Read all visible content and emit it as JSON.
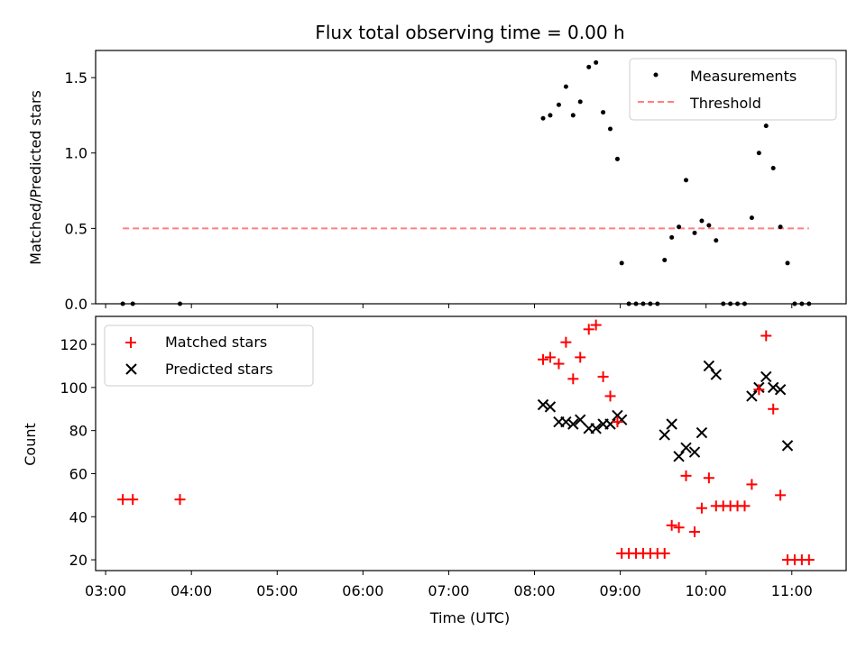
{
  "title": "Flux total observing time = 0.00 h",
  "colors": {
    "measurement": "#000000",
    "threshold": "#ff7f7f",
    "matched": "#ff0000",
    "predicted": "#000000"
  },
  "chart_data": [
    {
      "type": "scatter",
      "ylabel": "Matched/Predicted stars",
      "ylim": [
        0,
        1.68
      ],
      "yticks": [
        0.0,
        0.5,
        1.0,
        1.5
      ],
      "ytick_labels": [
        "0.0",
        "0.5",
        "1.0",
        "1.5"
      ],
      "legend_position": "upper right",
      "legend": [
        {
          "label": "Measurements",
          "marker": "dot"
        },
        {
          "label": "Threshold",
          "marker": "dashed-line"
        }
      ],
      "series": [
        {
          "name": "Measurements",
          "x": [
            "03:12",
            "03:19",
            "03:52",
            "08:06",
            "08:11",
            "08:17",
            "08:22",
            "08:27",
            "08:32",
            "08:38",
            "08:43",
            "08:48",
            "08:53",
            "08:58",
            "09:01",
            "09:06",
            "09:11",
            "09:16",
            "09:21",
            "09:26",
            "09:31",
            "09:36",
            "09:41",
            "09:46",
            "09:52",
            "09:57",
            "10:02",
            "10:07",
            "10:12",
            "10:17",
            "10:22",
            "10:27",
            "10:32",
            "10:37",
            "10:42",
            "10:47",
            "10:52",
            "10:57",
            "11:02",
            "11:07",
            "11:12"
          ],
          "y": [
            0,
            0,
            0,
            1.23,
            1.25,
            1.32,
            1.44,
            1.25,
            1.34,
            1.57,
            1.6,
            1.27,
            1.16,
            0.96,
            0.27,
            0,
            0,
            0,
            0,
            0,
            0.29,
            0.44,
            0.51,
            0.82,
            0.47,
            0.55,
            0.52,
            0.42,
            0,
            0,
            0,
            0,
            0.57,
            1.0,
            1.18,
            0.9,
            0.51,
            0.27,
            0,
            0,
            0
          ]
        },
        {
          "name": "Threshold",
          "x": [
            "03:12",
            "11:12"
          ],
          "y": [
            0.5,
            0.5
          ]
        }
      ]
    },
    {
      "type": "scatter",
      "xlabel": "Time (UTC)",
      "ylabel": "Count",
      "ylim": [
        15,
        133
      ],
      "yticks": [
        20,
        40,
        60,
        80,
        100,
        120
      ],
      "ytick_labels": [
        "20",
        "40",
        "60",
        "80",
        "100",
        "120"
      ],
      "xticks": [
        "03:00",
        "04:00",
        "05:00",
        "06:00",
        "07:00",
        "08:00",
        "09:00",
        "10:00",
        "11:00"
      ],
      "xlim": [
        "02:53",
        "11:38"
      ],
      "legend_position": "upper left",
      "legend": [
        {
          "label": "Matched stars",
          "marker": "plus"
        },
        {
          "label": "Predicted stars",
          "marker": "x"
        }
      ],
      "series": [
        {
          "name": "Matched stars",
          "x": [
            "03:12",
            "03:19",
            "03:52",
            "08:06",
            "08:11",
            "08:17",
            "08:22",
            "08:27",
            "08:32",
            "08:38",
            "08:43",
            "08:48",
            "08:53",
            "08:58",
            "09:01",
            "09:06",
            "09:11",
            "09:16",
            "09:21",
            "09:26",
            "09:31",
            "09:36",
            "09:41",
            "09:46",
            "09:52",
            "09:57",
            "10:02",
            "10:07",
            "10:12",
            "10:17",
            "10:22",
            "10:27",
            "10:32",
            "10:37",
            "10:42",
            "10:47",
            "10:52",
            "10:57",
            "11:02",
            "11:07",
            "11:12"
          ],
          "y": [
            48,
            48,
            48,
            113,
            114,
            111,
            121,
            104,
            114,
            127,
            129,
            105,
            96,
            84,
            23,
            23,
            23,
            23,
            23,
            23,
            23,
            36,
            35,
            59,
            33,
            44,
            58,
            45,
            45,
            45,
            45,
            45,
            55,
            99,
            124,
            90,
            50,
            20,
            20,
            20,
            20
          ]
        },
        {
          "name": "Predicted stars",
          "x": [
            "08:06",
            "08:11",
            "08:17",
            "08:22",
            "08:27",
            "08:32",
            "08:38",
            "08:43",
            "08:48",
            "08:53",
            "08:58",
            "09:01",
            "09:31",
            "09:36",
            "09:41",
            "09:46",
            "09:52",
            "09:57",
            "10:02",
            "10:07",
            "10:32",
            "10:37",
            "10:42",
            "10:47",
            "10:52",
            "10:57"
          ],
          "y": [
            92,
            91,
            84,
            84,
            83,
            85,
            81,
            81,
            83,
            83,
            87,
            85,
            78,
            83,
            68,
            72,
            70,
            79,
            110,
            106,
            96,
            100,
            105,
            100,
            99,
            73
          ]
        }
      ]
    }
  ]
}
